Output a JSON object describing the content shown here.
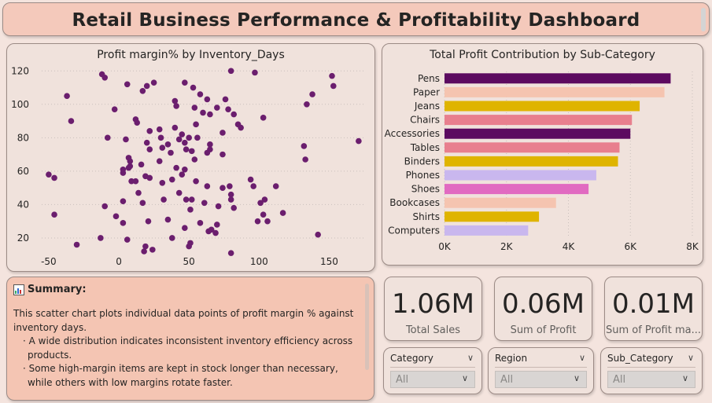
{
  "dashboard": {
    "title": "Retail Business Performance & Profitability Dashboard"
  },
  "scatter": {
    "title": "Profit margin% by Inventory_Days",
    "x_ticks": [
      -50,
      0,
      50,
      100,
      150
    ],
    "y_ticks": [
      20,
      40,
      60,
      80,
      100,
      120
    ],
    "color": "#6b1e6e"
  },
  "bars": {
    "title": "Total Profit Contribution by Sub-Category",
    "x_ticks": [
      "0K",
      "2K",
      "4K",
      "6K",
      "8K"
    ]
  },
  "chart_data": [
    {
      "type": "scatter",
      "title": "Profit margin% by Inventory_Days",
      "xlim": [
        -55,
        175
      ],
      "ylim": [
        12,
        122
      ],
      "points": [
        [
          -12,
          118
        ],
        [
          -10,
          116
        ],
        [
          6,
          112
        ],
        [
          20,
          111
        ],
        [
          25,
          113
        ],
        [
          47,
          113
        ],
        [
          53,
          110
        ],
        [
          58,
          106
        ],
        [
          80,
          120
        ],
        [
          97,
          119
        ],
        [
          152,
          117
        ],
        [
          153,
          111
        ],
        [
          138,
          106
        ],
        [
          134,
          100
        ],
        [
          -37,
          105
        ],
        [
          -34,
          90
        ],
        [
          -3,
          97
        ],
        [
          17,
          108
        ],
        [
          40,
          102
        ],
        [
          41,
          99
        ],
        [
          54,
          98
        ],
        [
          63,
          103
        ],
        [
          60,
          95
        ],
        [
          65,
          94
        ],
        [
          70,
          98
        ],
        [
          76,
          103
        ],
        [
          78,
          97
        ],
        [
          103,
          92
        ],
        [
          12,
          91
        ],
        [
          13,
          89
        ],
        [
          22,
          84
        ],
        [
          29,
          85
        ],
        [
          40,
          86
        ],
        [
          45,
          82
        ],
        [
          55,
          88
        ],
        [
          82,
          94
        ],
        [
          85,
          88
        ],
        [
          87,
          86
        ],
        [
          74,
          83
        ],
        [
          -8,
          80
        ],
        [
          5,
          79
        ],
        [
          20,
          77
        ],
        [
          30,
          80
        ],
        [
          35,
          76
        ],
        [
          43,
          79
        ],
        [
          47,
          77
        ],
        [
          50,
          80
        ],
        [
          56,
          80
        ],
        [
          52,
          72
        ],
        [
          65,
          76
        ],
        [
          132,
          75
        ],
        [
          171,
          78
        ],
        [
          7,
          68
        ],
        [
          22,
          73
        ],
        [
          31,
          74
        ],
        [
          37,
          71
        ],
        [
          48,
          73
        ],
        [
          63,
          71
        ],
        [
          8,
          66
        ],
        [
          3,
          61
        ],
        [
          7,
          62
        ],
        [
          8,
          63
        ],
        [
          16,
          64
        ],
        [
          19,
          57
        ],
        [
          29,
          66
        ],
        [
          41,
          62
        ],
        [
          47,
          61
        ],
        [
          54,
          67
        ],
        [
          65,
          73
        ],
        [
          74,
          70
        ],
        [
          133,
          67
        ],
        [
          -50,
          58
        ],
        [
          -46,
          56
        ],
        [
          3,
          59
        ],
        [
          9,
          54
        ],
        [
          12,
          54
        ],
        [
          14,
          47
        ],
        [
          22,
          56
        ],
        [
          31,
          53
        ],
        [
          38,
          55
        ],
        [
          45,
          58
        ],
        [
          55,
          54
        ],
        [
          63,
          51
        ],
        [
          74,
          50
        ],
        [
          94,
          55
        ],
        [
          96,
          51
        ],
        [
          80,
          43
        ],
        [
          -10,
          39
        ],
        [
          -2,
          33
        ],
        [
          3,
          42
        ],
        [
          17,
          41
        ],
        [
          32,
          43
        ],
        [
          43,
          47
        ],
        [
          48,
          43
        ],
        [
          52,
          43
        ],
        [
          51,
          37
        ],
        [
          61,
          41
        ],
        [
          71,
          39
        ],
        [
          79,
          51
        ],
        [
          80,
          46
        ],
        [
          82,
          38
        ],
        [
          101,
          41
        ],
        [
          104,
          43
        ],
        [
          112,
          51
        ],
        [
          103,
          34
        ],
        [
          -46,
          34
        ],
        [
          3,
          29
        ],
        [
          21,
          30
        ],
        [
          35,
          31
        ],
        [
          47,
          26
        ],
        [
          58,
          29
        ],
        [
          64,
          24
        ],
        [
          66,
          25
        ],
        [
          70,
          28
        ],
        [
          99,
          30
        ],
        [
          106,
          30
        ],
        [
          117,
          35
        ],
        [
          -30,
          16
        ],
        [
          -13,
          20
        ],
        [
          6,
          19
        ],
        [
          18,
          12
        ],
        [
          19,
          15
        ],
        [
          24,
          13
        ],
        [
          38,
          20
        ],
        [
          50,
          15
        ],
        [
          51,
          17
        ],
        [
          69,
          23
        ],
        [
          80,
          11
        ],
        [
          142,
          22
        ]
      ]
    },
    {
      "type": "bar",
      "title": "Total Profit Contribution by Sub-Category",
      "xlim": [
        0,
        8000
      ],
      "categories": [
        "Pens",
        "Paper",
        "Jeans",
        "Chairs",
        "Accessories",
        "Tables",
        "Binders",
        "Phones",
        "Shoes",
        "Bookcases",
        "Shirts",
        "Computers"
      ],
      "values": [
        7300,
        7100,
        6300,
        6050,
        6000,
        5650,
        5600,
        4900,
        4650,
        3600,
        3050,
        2700
      ],
      "colors": [
        "#5c0a60",
        "#f5c4b0",
        "#dfb400",
        "#e87f8e",
        "#5c0a60",
        "#e87f8e",
        "#dfb400",
        "#c9b7ee",
        "#e16ac1",
        "#f5c4b0",
        "#dfb400",
        "#c9b7ee"
      ]
    }
  ],
  "summary": {
    "heading": "Summary:",
    "intro": "This scatter chart plots individual data points of profit margin % against inventory days.",
    "bullets": [
      "A wide distribution indicates inconsistent inventory efficiency across products.",
      "Some high-margin items are kept in stock longer than necessary, while others with low margins rotate faster."
    ]
  },
  "kpis": [
    {
      "value": "1.06M",
      "label": "Total Sales"
    },
    {
      "value": "0.06M",
      "label": "Sum of Profit"
    },
    {
      "value": "0.01M",
      "label": "Sum of Profit ma..."
    }
  ],
  "slicers": [
    {
      "label": "Category",
      "value": "All"
    },
    {
      "label": "Region",
      "value": "All"
    },
    {
      "label": "Sub_Category",
      "value": "All"
    }
  ]
}
